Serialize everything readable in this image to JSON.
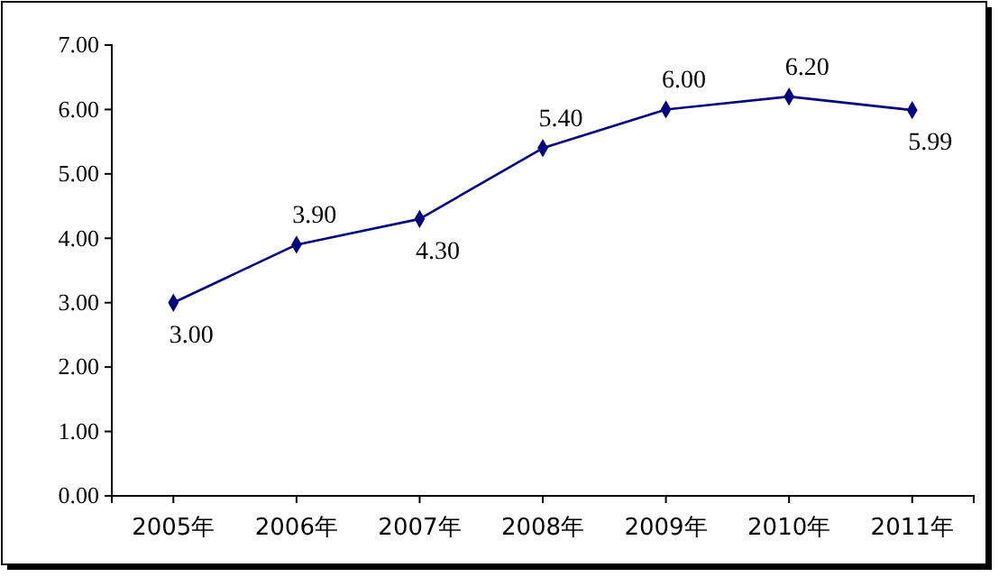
{
  "chart_data": {
    "type": "line",
    "categories": [
      "2005年",
      "2006年",
      "2007年",
      "2008年",
      "2009年",
      "2010年",
      "2011年"
    ],
    "series": [
      {
        "color": "#00007f",
        "values": [
          3.0,
          3.9,
          4.3,
          5.4,
          6.0,
          6.2,
          5.99
        ],
        "value_labels": [
          "3.00",
          "3.90",
          "4.30",
          "5.40",
          "6.00",
          "6.20",
          "5.99"
        ]
      }
    ],
    "ylim": [
      0,
      7
    ],
    "yticks": [
      {
        "value": 0,
        "label": "0.00"
      },
      {
        "value": 1,
        "label": "1.00"
      },
      {
        "value": 2,
        "label": "2.00"
      },
      {
        "value": 3,
        "label": "3.00"
      },
      {
        "value": 4,
        "label": "4.00"
      },
      {
        "value": 5,
        "label": "5.00"
      },
      {
        "value": 6,
        "label": "6.00"
      },
      {
        "value": 7,
        "label": "7.00"
      }
    ],
    "marker": "diamond",
    "line_style": "solid"
  }
}
